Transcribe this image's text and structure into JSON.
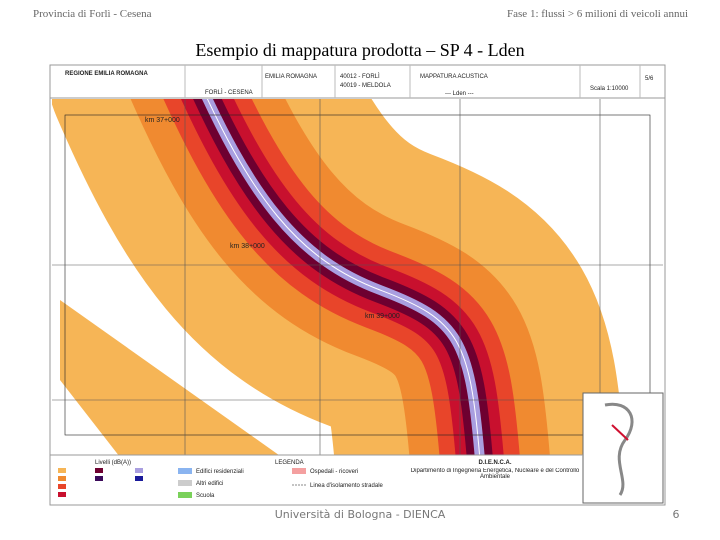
{
  "header": {
    "left": "Provincia di Forlì - Cesena",
    "right": "Fase 1: flussi > 6 milioni di veicoli annui"
  },
  "title": "Esempio di mappatura prodotta – SP 4 - Lden",
  "map": {
    "title_block": {
      "region": "REGIONE EMILIA ROMAGNA",
      "province": "EMILIA ROMAGNA",
      "province_name": "FORLÌ - CESENA",
      "municipality_1": "40012 - FORLÌ",
      "municipality_2": "40019 - MELDOLA",
      "map_title": "MAPPATURA ACUSTICA",
      "indicator": "--- Lden ---",
      "sheet": "5/6",
      "scale": "Scala 1:10000"
    },
    "km_labels": [
      "km 37+000",
      "km 38+000",
      "km 39+000"
    ],
    "legend": {
      "levels_title": "Livelli (dB(A))",
      "title": "LEGENDA",
      "items": [
        "Edifici residenziali",
        "Altri edifici",
        "Scuola",
        "Ospedali - ricoveri",
        "Linea d'isolamento stradale"
      ],
      "org_short": "D.I.E.N.C.A.",
      "org_long": "Dipartimento di Ingegneria Energetica, Nucleare e del Controllo Ambientale"
    }
  },
  "footer": {
    "center": "Università di Bologna - DIENCA",
    "page": "6"
  }
}
